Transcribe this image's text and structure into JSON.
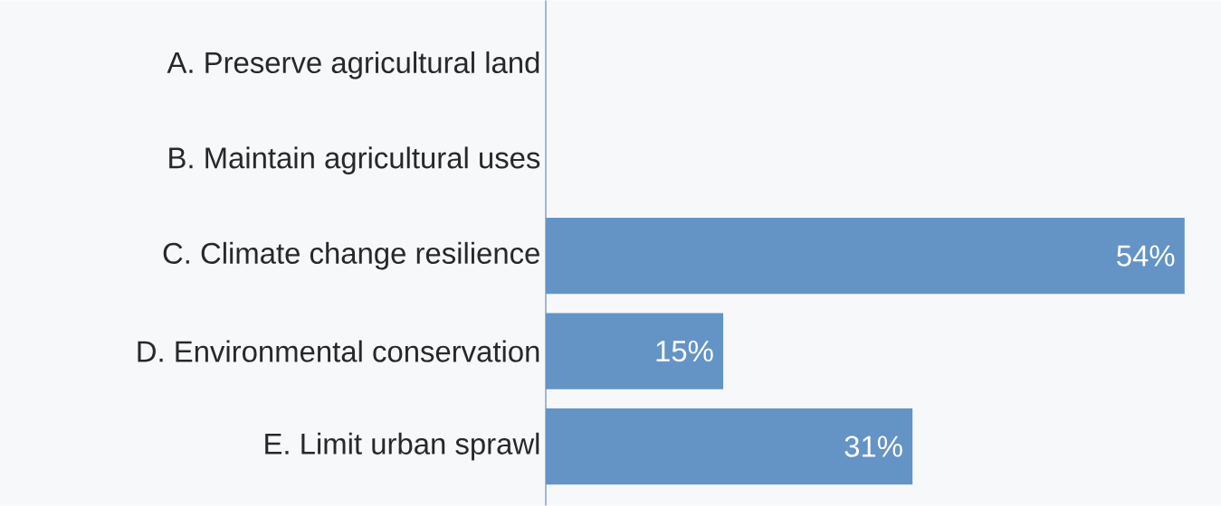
{
  "chart_data": {
    "type": "bar",
    "orientation": "horizontal",
    "categories": [
      "A. Preserve agricultural land",
      "B. Maintain agricultural uses",
      "C. Climate change resilience",
      "D. Environmental conservation",
      "E. Limit urban sprawl"
    ],
    "values": [
      null,
      null,
      54,
      15,
      31
    ],
    "value_labels": [
      null,
      null,
      "54%",
      "15%",
      "31%"
    ],
    "color": "#6394c5"
  }
}
